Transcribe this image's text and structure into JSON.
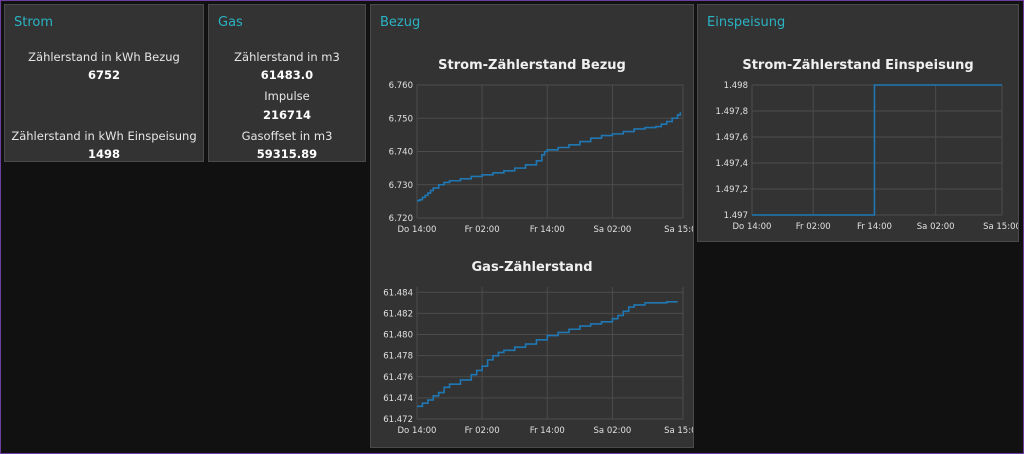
{
  "cards": {
    "strom": {
      "title": "Strom",
      "bezug_label": "Zählerstand in kWh Bezug",
      "bezug_value": "6752",
      "einspeisung_label": "Zählerstand in kWh Einspeisung",
      "einspeisung_value": "1498"
    },
    "gas": {
      "title": "Gas",
      "m3_label": "Zählerstand in m3",
      "m3_value": "61483.0",
      "impulse_label": "Impulse",
      "impulse_value": "216714",
      "offset_label": "Gasoffset in m3",
      "offset_value": "59315.89"
    },
    "bezug": {
      "title": "Bezug"
    },
    "einspeisung": {
      "title": "Einspeisung"
    }
  },
  "colors": {
    "accent": "#2bb3c4",
    "line": "#1f77b4",
    "card": "#333333",
    "background": "#111111"
  },
  "chart_data": [
    {
      "id": "strom_bezug",
      "type": "line",
      "title": "Strom-Zählerstand Bezug",
      "x_ticks": [
        "Do 14:00",
        "Fr 02:00",
        "Fr 14:00",
        "Sa 02:00",
        "Sa 15:00"
      ],
      "x_hours": [
        0,
        12,
        24,
        36,
        49
      ],
      "xlim": [
        0,
        49
      ],
      "y_ticks": [
        "6.720",
        "6.730",
        "6.740",
        "6.750",
        "6.760"
      ],
      "ylim": [
        6.72,
        6.76
      ],
      "grid": true,
      "series": [
        {
          "x": [
            0,
            0.5,
            1,
            1.5,
            2,
            2.5,
            3,
            4,
            5,
            6,
            8,
            10,
            12,
            14,
            16,
            18,
            20,
            22,
            23,
            23.5,
            24,
            26,
            28,
            30,
            32,
            34,
            36,
            38,
            40,
            42,
            44,
            45,
            46,
            47,
            48,
            48.5
          ],
          "y": [
            6.7252,
            6.7255,
            6.7262,
            6.7268,
            6.7275,
            6.7283,
            6.729,
            6.73,
            6.7307,
            6.7312,
            6.7318,
            6.7325,
            6.733,
            6.7336,
            6.7342,
            6.735,
            6.736,
            6.7372,
            6.739,
            6.74,
            6.7405,
            6.7412,
            6.742,
            6.743,
            6.744,
            6.7448,
            6.7453,
            6.746,
            6.7468,
            6.7472,
            6.7475,
            6.7482,
            6.749,
            6.75,
            6.751,
            6.7518
          ]
        }
      ]
    },
    {
      "id": "gas",
      "type": "line",
      "title": "Gas-Zählerstand",
      "x_ticks": [
        "Do 14:00",
        "Fr 02:00",
        "Fr 14:00",
        "Sa 02:00",
        "Sa 15:00"
      ],
      "x_hours": [
        0,
        12,
        24,
        36,
        49
      ],
      "xlim": [
        0,
        49
      ],
      "y_ticks": [
        "61.472",
        "61.474",
        "61.476",
        "61.478",
        "61.480",
        "61.482",
        "61.484"
      ],
      "ylim": [
        61.472,
        61.4845
      ],
      "grid": true,
      "series": [
        {
          "x": [
            0,
            1,
            2,
            3,
            4,
            5,
            6,
            8,
            10,
            11,
            12,
            13,
            14,
            15,
            16,
            18,
            20,
            22,
            24,
            26,
            28,
            30,
            32,
            34,
            36,
            37,
            38,
            39,
            40,
            42,
            44,
            46,
            48
          ],
          "y": [
            61.4732,
            61.4735,
            61.4738,
            61.4742,
            61.4745,
            61.475,
            61.4753,
            61.4757,
            61.4762,
            61.4766,
            61.477,
            61.4776,
            61.478,
            61.4783,
            61.4785,
            61.4788,
            61.4791,
            61.4795,
            61.4799,
            61.4802,
            61.4805,
            61.4808,
            61.481,
            61.4812,
            61.4815,
            61.4818,
            61.4822,
            61.4826,
            61.4828,
            61.483,
            61.483,
            61.4831,
            61.4831
          ]
        }
      ]
    },
    {
      "id": "strom_einspeisung",
      "type": "line",
      "title": "Strom-Zählerstand Einspeisung",
      "x_ticks": [
        "Do 14:00",
        "Fr 02:00",
        "Fr 14:00",
        "Sa 02:00",
        "Sa 15:00"
      ],
      "x_hours": [
        0,
        12,
        24,
        36,
        49
      ],
      "xlim": [
        0,
        49
      ],
      "y_ticks": [
        "1.497",
        "1.497,2",
        "1.497,4",
        "1.497,6",
        "1.497,8",
        "1.498"
      ],
      "ylim": [
        1497,
        1498
      ],
      "grid": true,
      "series": [
        {
          "x": [
            0,
            24,
            24,
            49
          ],
          "y": [
            1497,
            1497,
            1498,
            1498
          ]
        }
      ]
    }
  ]
}
